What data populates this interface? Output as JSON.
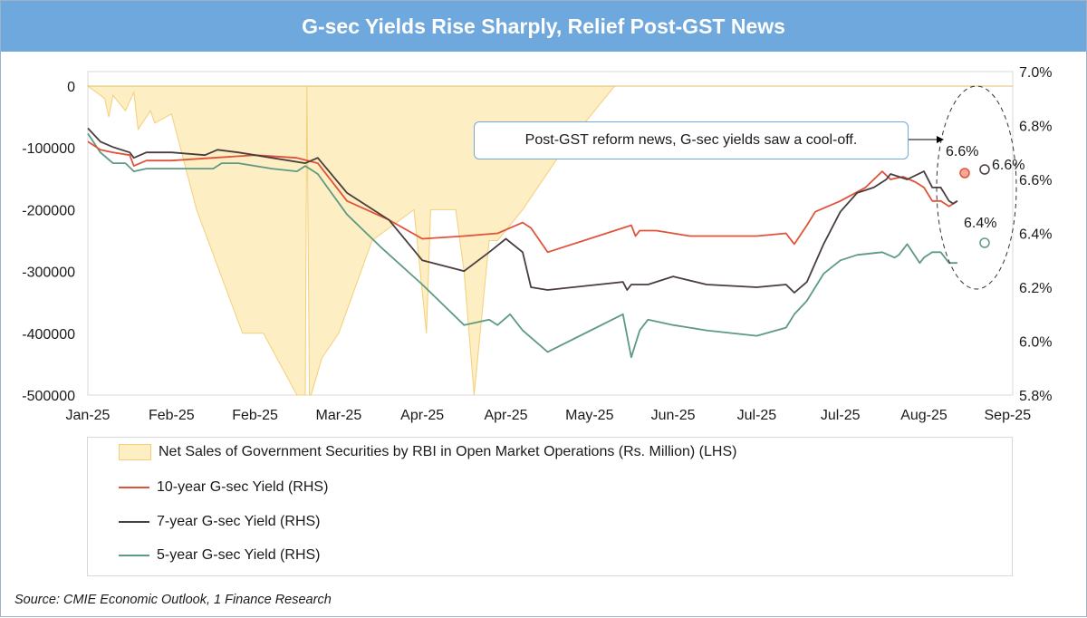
{
  "title": "G-sec Yields Rise Sharply, Relief Post-GST News",
  "source": "Source: CMIE Economic Outlook, 1 Finance Research",
  "callout": "Post-GST reform news, G-sec yields saw a cool-off.",
  "annotations": {
    "ten_year_peak": "6.6%",
    "seven_year_peak": "6.6%",
    "five_year_peak": "6.4%"
  },
  "colors": {
    "title_bar": "#6fa8dc",
    "oms_fill": "#fdeec4",
    "oms_line": "#f4cf77",
    "ten_year": "#e0533a",
    "seven_year": "#4a3d3d",
    "five_year": "#5e9a83"
  },
  "chart_data": {
    "type": "line",
    "x_tick_labels": [
      "Jan-25",
      "Feb-25",
      "Feb-25",
      "Mar-25",
      "Apr-25",
      "Apr-25",
      "May-25",
      "Jun-25",
      "Jul-25",
      "Jul-25",
      "Aug-25",
      "Sep-25"
    ],
    "left_axis": {
      "ticks": [
        "0",
        "-100000",
        "-200000",
        "-300000",
        "-400000",
        "-500000"
      ],
      "ylim": [
        -500000,
        0
      ]
    },
    "right_axis": {
      "ticks": [
        "7.0%",
        "6.8%",
        "6.6%",
        "6.4%",
        "6.2%",
        "6.0%",
        "5.8%"
      ],
      "ylim": [
        5.8,
        7.0
      ]
    },
    "legend": [
      "Net Sales of Government Securities by RBI in Open Market Operations (Rs. Million) (LHS)",
      "10-year G-sec Yield (RHS)",
      "7-year G-sec Yield (RHS)",
      "5-year G-sec Yield (RHS)"
    ],
    "oms_series": {
      "name": "Net Sales of Government Securities by RBI in Open Market Operations (Rs. Million) (LHS)",
      "x": [
        0,
        0.2,
        0.25,
        0.3,
        0.45,
        0.55,
        0.6,
        0.75,
        0.8,
        1.0,
        1.3,
        1.85,
        2.1,
        2.5,
        2.6,
        2.62,
        2.65,
        2.67,
        2.8,
        3.0,
        3.4,
        3.9,
        4.05,
        4.1,
        4.4,
        4.5,
        4.62,
        4.8,
        4.9,
        5.2,
        5.7,
        6.3
      ],
      "values": [
        0,
        -20000,
        -50000,
        -15000,
        -40000,
        -10000,
        -70000,
        -40000,
        -60000,
        -45000,
        -200000,
        -400000,
        -400000,
        -500000,
        -500000,
        0,
        -500000,
        -500000,
        -440000,
        -400000,
        -250000,
        -200000,
        -400000,
        -200000,
        -200000,
        -300000,
        -500000,
        -250000,
        -250000,
        -200000,
        -100000,
        0
      ]
    },
    "series": [
      {
        "name": "10-year G-sec Yield (RHS)",
        "x": [
          0,
          0.15,
          0.3,
          0.5,
          0.55,
          0.7,
          1.0,
          1.5,
          2.0,
          2.5,
          2.75,
          3.1,
          3.6,
          4.0,
          4.5,
          4.9,
          5.2,
          5.3,
          5.5,
          6.5,
          6.55,
          6.6,
          6.8,
          7.2,
          8.0,
          8.35,
          8.45,
          8.6,
          8.7,
          9.0,
          9.3,
          9.5,
          9.6,
          9.75,
          9.9,
          10.0,
          10.1,
          10.2,
          10.3,
          10.4
        ],
        "values": [
          6.74,
          6.71,
          6.7,
          6.69,
          6.65,
          6.67,
          6.67,
          6.68,
          6.69,
          6.68,
          6.66,
          6.52,
          6.45,
          6.38,
          6.39,
          6.4,
          6.44,
          6.42,
          6.33,
          6.43,
          6.39,
          6.41,
          6.41,
          6.39,
          6.39,
          6.4,
          6.36,
          6.43,
          6.48,
          6.52,
          6.57,
          6.63,
          6.6,
          6.61,
          6.59,
          6.57,
          6.52,
          6.52,
          6.5,
          6.52
        ]
      },
      {
        "name": "7-year G-sec Yield (RHS)",
        "x": [
          0,
          0.15,
          0.3,
          0.5,
          0.55,
          0.7,
          1.0,
          1.4,
          1.55,
          1.8,
          2.2,
          2.6,
          2.75,
          3.1,
          3.6,
          4.0,
          4.5,
          4.8,
          5.0,
          5.2,
          5.3,
          5.5,
          6.4,
          6.45,
          6.5,
          6.7,
          7.0,
          7.4,
          8.0,
          8.35,
          8.45,
          8.6,
          8.8,
          9.0,
          9.2,
          9.4,
          9.55,
          9.6,
          9.8,
          10.0,
          10.1,
          10.2,
          10.3,
          10.35,
          10.4
        ],
        "values": [
          6.79,
          6.74,
          6.72,
          6.7,
          6.68,
          6.7,
          6.7,
          6.69,
          6.71,
          6.7,
          6.68,
          6.66,
          6.68,
          6.55,
          6.45,
          6.3,
          6.26,
          6.33,
          6.38,
          6.33,
          6.2,
          6.19,
          6.22,
          6.19,
          6.21,
          6.21,
          6.24,
          6.21,
          6.2,
          6.21,
          6.18,
          6.22,
          6.36,
          6.48,
          6.55,
          6.57,
          6.6,
          6.62,
          6.6,
          6.63,
          6.57,
          6.57,
          6.52,
          6.51,
          6.52
        ]
      },
      {
        "name": "5-year G-sec Yield (RHS)",
        "x": [
          0,
          0.15,
          0.3,
          0.45,
          0.55,
          0.7,
          1.0,
          1.5,
          1.6,
          1.8,
          2.2,
          2.5,
          2.6,
          2.75,
          3.1,
          3.5,
          4.0,
          4.5,
          4.8,
          4.9,
          5.05,
          5.2,
          5.5,
          6.4,
          6.5,
          6.6,
          6.7,
          7.0,
          7.4,
          8.0,
          8.35,
          8.45,
          8.6,
          8.8,
          9.0,
          9.2,
          9.5,
          9.65,
          9.7,
          9.8,
          9.95,
          10.0,
          10.1,
          10.2,
          10.3,
          10.4
        ],
        "values": [
          6.77,
          6.7,
          6.66,
          6.66,
          6.63,
          6.64,
          6.64,
          6.64,
          6.66,
          6.66,
          6.64,
          6.63,
          6.65,
          6.62,
          6.47,
          6.35,
          6.21,
          6.06,
          6.08,
          6.06,
          6.1,
          6.04,
          5.96,
          6.1,
          5.94,
          6.04,
          6.08,
          6.06,
          6.04,
          6.02,
          6.05,
          6.1,
          6.15,
          6.25,
          6.3,
          6.32,
          6.33,
          6.31,
          6.32,
          6.36,
          6.29,
          6.31,
          6.33,
          6.33,
          6.29,
          6.29
        ]
      }
    ]
  }
}
